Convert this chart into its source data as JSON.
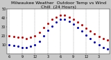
{
  "title": "Milwaukee Weather  Outdoor Temp vs Wind Chill  (24 Hours)",
  "bg_color": "#c8c8c8",
  "plot_bg_color": "#ffffff",
  "grid_color": "#888888",
  "temp_color": "#cc0000",
  "windchill_color": "#0000cc",
  "temp_values": [
    20,
    19,
    18,
    18,
    17,
    18,
    20,
    24,
    29,
    34,
    38,
    41,
    43,
    43,
    41,
    38,
    35,
    32,
    28,
    25,
    22,
    19,
    17,
    15
  ],
  "windchill_values": [
    10,
    9,
    8,
    7,
    7,
    8,
    10,
    14,
    20,
    26,
    31,
    35,
    38,
    38,
    36,
    33,
    29,
    25,
    21,
    17,
    13,
    10,
    7,
    5
  ],
  "x_tick_positions": [
    0,
    3,
    6,
    9,
    12,
    15,
    18,
    21
  ],
  "x_tick_labels": [
    "6",
    "9",
    "12",
    "3",
    "6",
    "9",
    "12",
    "3"
  ],
  "ylim_min": 0,
  "ylim_max": 50,
  "yticks": [
    10,
    20,
    30,
    40,
    50
  ],
  "title_fontsize": 4.5,
  "tick_fontsize": 3.5,
  "marker_size": 1.2,
  "linewidth": 0.5
}
